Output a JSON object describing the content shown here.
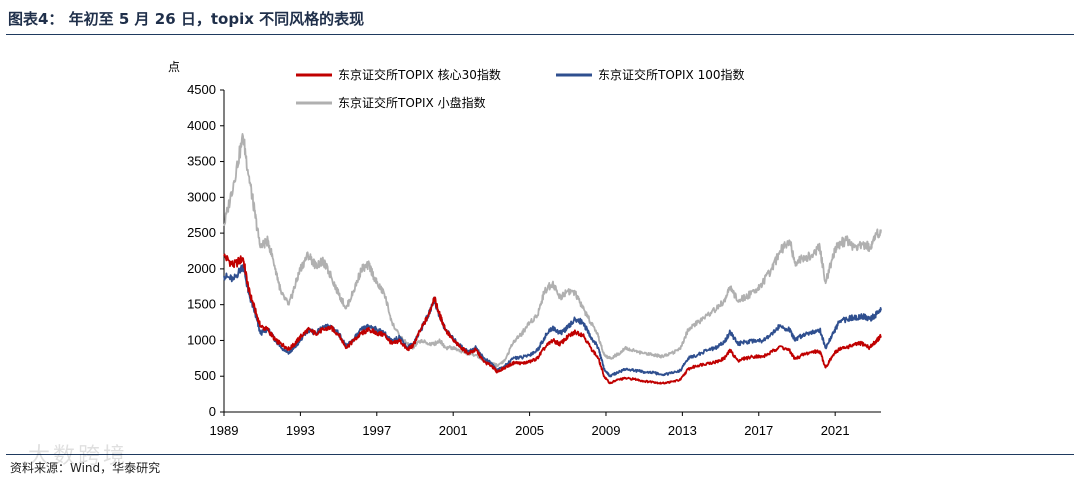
{
  "header": {
    "title": "图表4：  年初至 5 月 26 日，topix 不同风格的表现"
  },
  "footer": {
    "source": "资料来源：Wind，华泰研究",
    "watermark": "大数跨境"
  },
  "colors": {
    "core30": "#c00000",
    "topix100": "#2f4f8f",
    "small": "#b0b0b0",
    "axis": "#000000",
    "rule": "#1f3a5f"
  },
  "chart_data": {
    "type": "line",
    "title": "",
    "ylabel": "点",
    "xlabel": "",
    "ylim": [
      0,
      4500
    ],
    "xlim": [
      1989,
      2023.4
    ],
    "yticks": [
      0,
      500,
      1000,
      1500,
      2000,
      2500,
      3000,
      3500,
      4000,
      4500
    ],
    "xticks": [
      1989,
      1993,
      1997,
      2001,
      2005,
      2009,
      2013,
      2017,
      2021
    ],
    "grid": false,
    "legend": "top",
    "series": [
      {
        "name": "东京证交所TOPIX 核心30指数",
        "color": "#c00000",
        "x": [
          1989.0,
          1989.5,
          1990.0,
          1990.3,
          1990.6,
          1990.9,
          1991.3,
          1991.7,
          1992.0,
          1992.4,
          1992.7,
          1993.0,
          1993.4,
          1993.8,
          1994.2,
          1994.6,
          1995.0,
          1995.4,
          1995.8,
          1996.2,
          1996.6,
          1997.0,
          1997.4,
          1997.8,
          1998.2,
          1998.6,
          1998.9,
          1999.3,
          1999.7,
          2000.0,
          2000.3,
          2000.6,
          2001.0,
          2001.4,
          2001.8,
          2002.2,
          2002.6,
          2003.0,
          2003.3,
          2003.7,
          2004.2,
          2004.6,
          2005.0,
          2005.4,
          2005.8,
          2006.2,
          2006.6,
          2007.0,
          2007.4,
          2007.8,
          2008.2,
          2008.6,
          2008.9,
          2009.2,
          2009.6,
          2010.0,
          2010.5,
          2011.0,
          2011.5,
          2011.9,
          2012.4,
          2012.9,
          2013.3,
          2013.8,
          2014.3,
          2014.8,
          2015.2,
          2015.5,
          2015.9,
          2016.3,
          2016.8,
          2017.2,
          2017.7,
          2018.1,
          2018.6,
          2018.9,
          2019.3,
          2019.8,
          2020.2,
          2020.5,
          2020.9,
          2021.2,
          2021.6,
          2022.0,
          2022.4,
          2022.8,
          2023.1,
          2023.4
        ],
        "values": [
          2180,
          2050,
          2150,
          1700,
          1450,
          1200,
          1150,
          1000,
          950,
          880,
          950,
          1050,
          1150,
          1100,
          1150,
          1180,
          1080,
          900,
          1000,
          1100,
          1150,
          1100,
          1080,
          950,
          1000,
          870,
          930,
          1150,
          1350,
          1600,
          1350,
          1150,
          1000,
          900,
          820,
          870,
          700,
          650,
          560,
          620,
          690,
          680,
          700,
          750,
          900,
          1000,
          950,
          1050,
          1120,
          1080,
          900,
          750,
          500,
          400,
          450,
          470,
          460,
          430,
          420,
          400,
          420,
          450,
          600,
          650,
          680,
          700,
          750,
          860,
          720,
          750,
          780,
          770,
          840,
          920,
          860,
          740,
          800,
          840,
          850,
          620,
          800,
          880,
          900,
          940,
          960,
          900,
          980,
          1060
        ]
      },
      {
        "name": "东京证交所TOPIX 100指数",
        "color": "#2f4f8f",
        "x": [
          1989.0,
          1989.5,
          1990.0,
          1990.3,
          1990.6,
          1990.9,
          1991.3,
          1991.7,
          1992.0,
          1992.4,
          1992.7,
          1993.0,
          1993.4,
          1993.8,
          1994.2,
          1994.6,
          1995.0,
          1995.4,
          1995.8,
          1996.2,
          1996.6,
          1997.0,
          1997.4,
          1997.8,
          1998.2,
          1998.6,
          1998.9,
          1999.3,
          1999.7,
          2000.0,
          2000.3,
          2000.6,
          2001.0,
          2001.4,
          2001.8,
          2002.2,
          2002.6,
          2003.0,
          2003.3,
          2003.7,
          2004.2,
          2004.6,
          2005.0,
          2005.4,
          2005.8,
          2006.2,
          2006.6,
          2007.0,
          2007.4,
          2007.8,
          2008.2,
          2008.6,
          2008.9,
          2009.2,
          2009.6,
          2010.0,
          2010.5,
          2011.0,
          2011.5,
          2011.9,
          2012.4,
          2012.9,
          2013.3,
          2013.8,
          2014.3,
          2014.8,
          2015.2,
          2015.5,
          2015.9,
          2016.3,
          2016.8,
          2017.2,
          2017.7,
          2018.1,
          2018.6,
          2018.9,
          2019.3,
          2019.8,
          2020.2,
          2020.5,
          2020.9,
          2021.2,
          2021.6,
          2022.0,
          2022.4,
          2022.8,
          2023.1,
          2023.4
        ],
        "values": [
          1900,
          1850,
          2050,
          1650,
          1400,
          1100,
          1150,
          1000,
          900,
          830,
          900,
          1000,
          1150,
          1100,
          1180,
          1200,
          1100,
          920,
          1020,
          1150,
          1200,
          1150,
          1100,
          980,
          1050,
          900,
          950,
          1150,
          1350,
          1580,
          1320,
          1150,
          1020,
          920,
          840,
          900,
          750,
          680,
          580,
          640,
          760,
          760,
          800,
          860,
          1050,
          1180,
          1100,
          1180,
          1300,
          1250,
          1050,
          900,
          600,
          500,
          550,
          600,
          580,
          560,
          550,
          520,
          540,
          580,
          750,
          800,
          860,
          900,
          980,
          1120,
          950,
          980,
          1000,
          1000,
          1100,
          1200,
          1150,
          1000,
          1080,
          1120,
          1150,
          900,
          1100,
          1250,
          1300,
          1320,
          1340,
          1300,
          1350,
          1420
        ]
      },
      {
        "name": "东京证交所TOPIX 小盘指数",
        "color": "#b0b0b0",
        "x": [
          1989.0,
          1989.5,
          1990.0,
          1990.3,
          1990.6,
          1990.9,
          1991.3,
          1991.7,
          1992.0,
          1992.4,
          1992.7,
          1993.0,
          1993.4,
          1993.8,
          1994.2,
          1994.6,
          1995.0,
          1995.4,
          1995.8,
          1996.2,
          1996.6,
          1997.0,
          1997.4,
          1997.8,
          1998.2,
          1998.6,
          1998.9,
          1999.3,
          1999.7,
          2000.0,
          2000.3,
          2000.6,
          2001.0,
          2001.4,
          2001.8,
          2002.2,
          2002.6,
          2003.0,
          2003.3,
          2003.7,
          2004.2,
          2004.6,
          2005.0,
          2005.4,
          2005.8,
          2006.2,
          2006.6,
          2007.0,
          2007.4,
          2007.8,
          2008.2,
          2008.6,
          2008.9,
          2009.2,
          2009.6,
          2010.0,
          2010.5,
          2011.0,
          2011.5,
          2011.9,
          2012.4,
          2012.9,
          2013.3,
          2013.8,
          2014.3,
          2014.8,
          2015.2,
          2015.5,
          2015.9,
          2016.3,
          2016.8,
          2017.2,
          2017.7,
          2018.1,
          2018.6,
          2018.9,
          2019.3,
          2019.8,
          2020.2,
          2020.5,
          2020.9,
          2021.2,
          2021.6,
          2022.0,
          2022.4,
          2022.8,
          2023.1,
          2023.4
        ],
        "values": [
          2600,
          3200,
          3850,
          3300,
          2800,
          2300,
          2400,
          2000,
          1650,
          1500,
          1750,
          2000,
          2200,
          2050,
          2100,
          1900,
          1650,
          1450,
          1700,
          2000,
          2050,
          1800,
          1650,
          1250,
          1050,
          950,
          900,
          1000,
          950,
          950,
          1000,
          900,
          900,
          850,
          820,
          800,
          720,
          690,
          650,
          720,
          1000,
          1100,
          1250,
          1350,
          1700,
          1800,
          1600,
          1700,
          1650,
          1450,
          1250,
          1050,
          800,
          750,
          800,
          900,
          850,
          820,
          800,
          780,
          820,
          880,
          1150,
          1250,
          1350,
          1450,
          1550,
          1750,
          1550,
          1600,
          1700,
          1800,
          2000,
          2250,
          2400,
          2100,
          2150,
          2200,
          2300,
          1800,
          2200,
          2350,
          2400,
          2300,
          2350,
          2300,
          2450,
          2550
        ]
      }
    ]
  }
}
